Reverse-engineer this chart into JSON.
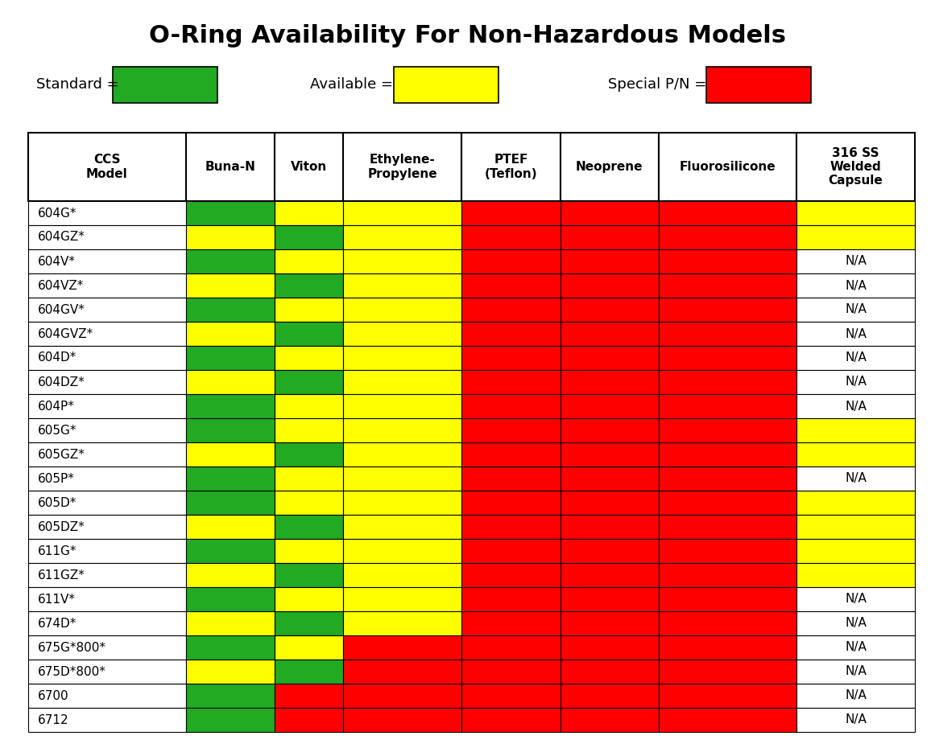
{
  "title": "O-Ring Availability For Non-Hazardous Models",
  "legend": {
    "Standard": "#22aa22",
    "Available": "#ffff00",
    "Special P/N": "#ff0000"
  },
  "columns": [
    "CCS\nModel",
    "Buna-N",
    "Viton",
    "Ethylene-\nPropylene",
    "PTEF\n(Teflon)",
    "Neoprene",
    "Fluorosilicone",
    "316 SS\nWelded\nCapsule"
  ],
  "col_widths": [
    1.6,
    0.9,
    0.7,
    1.2,
    1.0,
    1.0,
    1.4,
    1.2
  ],
  "rows": [
    {
      "model": "604G*",
      "colors": [
        "G",
        "Y",
        "Y",
        "R",
        "R",
        "R",
        "Y"
      ],
      "na": false
    },
    {
      "model": "604GZ*",
      "colors": [
        "Y",
        "G",
        "Y",
        "R",
        "R",
        "R",
        "Y"
      ],
      "na": false
    },
    {
      "model": "604V*",
      "colors": [
        "G",
        "Y",
        "Y",
        "R",
        "R",
        "R",
        "W"
      ],
      "na": true
    },
    {
      "model": "604VZ*",
      "colors": [
        "Y",
        "G",
        "Y",
        "R",
        "R",
        "R",
        "W"
      ],
      "na": true
    },
    {
      "model": "604GV*",
      "colors": [
        "G",
        "Y",
        "Y",
        "R",
        "R",
        "R",
        "W"
      ],
      "na": true
    },
    {
      "model": "604GVZ*",
      "colors": [
        "Y",
        "G",
        "Y",
        "R",
        "R",
        "R",
        "W"
      ],
      "na": true
    },
    {
      "model": "604D*",
      "colors": [
        "G",
        "Y",
        "Y",
        "R",
        "R",
        "R",
        "W"
      ],
      "na": true
    },
    {
      "model": "604DZ*",
      "colors": [
        "Y",
        "G",
        "Y",
        "R",
        "R",
        "R",
        "W"
      ],
      "na": true
    },
    {
      "model": "604P*",
      "colors": [
        "G",
        "Y",
        "Y",
        "R",
        "R",
        "R",
        "W"
      ],
      "na": true
    },
    {
      "model": "605G*",
      "colors": [
        "G",
        "Y",
        "Y",
        "R",
        "R",
        "R",
        "Y"
      ],
      "na": false
    },
    {
      "model": "605GZ*",
      "colors": [
        "Y",
        "G",
        "Y",
        "R",
        "R",
        "R",
        "Y"
      ],
      "na": false
    },
    {
      "model": "605P*",
      "colors": [
        "G",
        "Y",
        "Y",
        "R",
        "R",
        "R",
        "W"
      ],
      "na": true
    },
    {
      "model": "605D*",
      "colors": [
        "G",
        "Y",
        "Y",
        "R",
        "R",
        "R",
        "Y"
      ],
      "na": false
    },
    {
      "model": "605DZ*",
      "colors": [
        "Y",
        "G",
        "Y",
        "R",
        "R",
        "R",
        "Y"
      ],
      "na": false
    },
    {
      "model": "611G*",
      "colors": [
        "G",
        "Y",
        "Y",
        "R",
        "R",
        "R",
        "Y"
      ],
      "na": false
    },
    {
      "model": "611GZ*",
      "colors": [
        "Y",
        "G",
        "Y",
        "R",
        "R",
        "R",
        "Y"
      ],
      "na": false
    },
    {
      "model": "611V*",
      "colors": [
        "G",
        "Y",
        "Y",
        "R",
        "R",
        "R",
        "W"
      ],
      "na": true
    },
    {
      "model": "674D*",
      "colors": [
        "Y",
        "G",
        "Y",
        "R",
        "R",
        "R",
        "W"
      ],
      "na": true
    },
    {
      "model": "675G*800*",
      "colors": [
        "G",
        "Y",
        "R",
        "R",
        "R",
        "R",
        "W"
      ],
      "na": true
    },
    {
      "model": "675D*800*",
      "colors": [
        "Y",
        "G",
        "R",
        "R",
        "R",
        "R",
        "W"
      ],
      "na": true
    },
    {
      "model": "6700",
      "colors": [
        "G",
        "R",
        "R",
        "R",
        "R",
        "R",
        "W"
      ],
      "na": true
    },
    {
      "model": "6712",
      "colors": [
        "G",
        "R",
        "R",
        "R",
        "R",
        "R",
        "W"
      ],
      "na": true
    }
  ],
  "color_map": {
    "G": "#22aa22",
    "Y": "#ffff00",
    "R": "#ff0000",
    "W": "#ffffff"
  },
  "background": "#ffffff",
  "header_bg": "#ffffff",
  "border_color": "#000000",
  "text_color": "#000000",
  "title_fontsize": 22,
  "legend_fontsize": 13,
  "header_fontsize": 11,
  "cell_fontsize": 11,
  "na_text": "N/A"
}
